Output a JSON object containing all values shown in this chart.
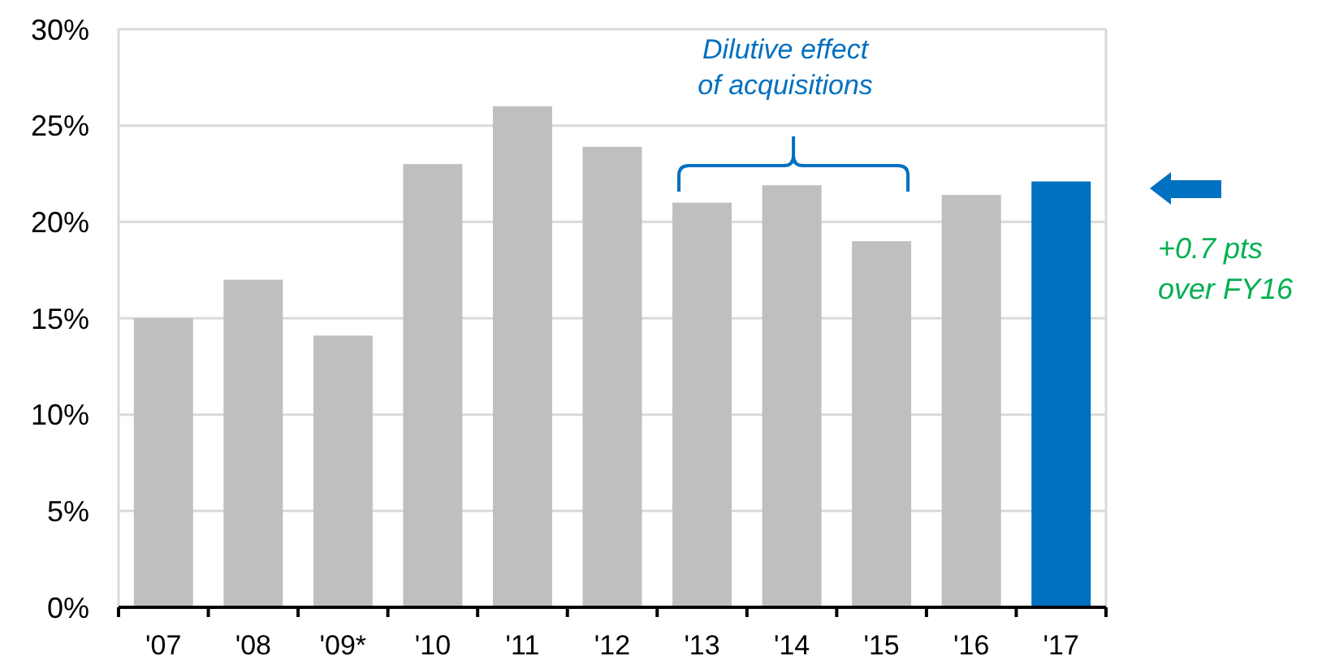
{
  "chart_data": {
    "type": "bar",
    "categories": [
      "'07",
      "'08",
      "'09*",
      "'10",
      "'11",
      "'12",
      "'13",
      "'14",
      "'15",
      "'16",
      "'17"
    ],
    "values": [
      15,
      17,
      14.1,
      23,
      26,
      23.9,
      21,
      21.9,
      19,
      21.4,
      22.1
    ],
    "colors": [
      "#bfbfbf",
      "#bfbfbf",
      "#bfbfbf",
      "#bfbfbf",
      "#bfbfbf",
      "#bfbfbf",
      "#bfbfbf",
      "#bfbfbf",
      "#bfbfbf",
      "#bfbfbf",
      "#0070c0"
    ],
    "ylim": [
      0,
      30
    ],
    "yticks": [
      {
        "value": 0,
        "label": "0%"
      },
      {
        "value": 5,
        "label": "5%"
      },
      {
        "value": 10,
        "label": "10%"
      },
      {
        "value": 15,
        "label": "15%"
      },
      {
        "value": 20,
        "label": "20%"
      },
      {
        "value": 25,
        "label": "25%"
      },
      {
        "value": 30,
        "label": "30%"
      }
    ],
    "grid": "y",
    "annotations": [
      "Dilutive effect of acquisitions",
      "+0.7 pts over FY16"
    ]
  }
}
